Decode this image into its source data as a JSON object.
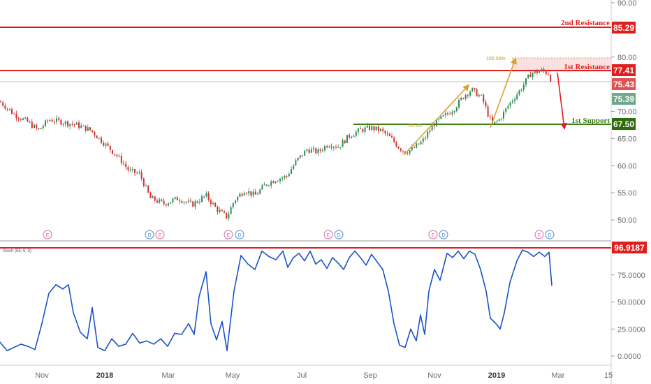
{
  "chart_data": [
    {
      "type": "candlestick",
      "panel": "price",
      "ylim": [
        45,
        92
      ],
      "yticks": [
        "90.00",
        "80.00",
        "70.00",
        "65.00",
        "60.00",
        "55.00",
        "50.00"
      ],
      "xlabels": [
        {
          "text": "Nov",
          "bold": false
        },
        {
          "text": "2018",
          "bold": true
        },
        {
          "text": "Mar",
          "bold": false
        },
        {
          "text": "May",
          "bold": false
        },
        {
          "text": "Jul",
          "bold": false
        },
        {
          "text": "Sep",
          "bold": false
        },
        {
          "text": "Nov",
          "bold": false
        },
        {
          "text": "2019",
          "bold": true
        },
        {
          "text": "Mar",
          "bold": false
        },
        {
          "text": "15",
          "bold": false
        }
      ],
      "price_path": [
        [
          0,
          71.8
        ],
        [
          20,
          69.5
        ],
        [
          40,
          68.0
        ],
        [
          55,
          66.5
        ],
        [
          70,
          68.5
        ],
        [
          90,
          68.0
        ],
        [
          110,
          67.5
        ],
        [
          130,
          66.5
        ],
        [
          150,
          64.0
        ],
        [
          170,
          61.5
        ],
        [
          185,
          59.0
        ],
        [
          200,
          58.5
        ],
        [
          215,
          54.0
        ],
        [
          235,
          53.0
        ],
        [
          255,
          54.0
        ],
        [
          275,
          52.8
        ],
        [
          295,
          54.5
        ],
        [
          310,
          52.0
        ],
        [
          325,
          50.5
        ],
        [
          335,
          53.5
        ],
        [
          350,
          55.5
        ],
        [
          365,
          54.5
        ],
        [
          380,
          56.5
        ],
        [
          395,
          57.5
        ],
        [
          410,
          58.0
        ],
        [
          425,
          61.0
        ],
        [
          440,
          63.0
        ],
        [
          455,
          62.5
        ],
        [
          470,
          64.0
        ],
        [
          485,
          63.5
        ],
        [
          500,
          65.5
        ],
        [
          515,
          66.5
        ],
        [
          530,
          67.0
        ],
        [
          545,
          66.5
        ],
        [
          560,
          65.0
        ],
        [
          570,
          63.5
        ],
        [
          580,
          62.5
        ],
        [
          590,
          63.0
        ],
        [
          605,
          64.5
        ],
        [
          620,
          67.5
        ],
        [
          635,
          69.0
        ],
        [
          650,
          70.5
        ],
        [
          665,
          73.0
        ],
        [
          675,
          74.0
        ],
        [
          690,
          72.5
        ],
        [
          700,
          69.0
        ],
        [
          705,
          67.5
        ],
        [
          715,
          68.5
        ],
        [
          730,
          71.5
        ],
        [
          745,
          74.0
        ],
        [
          760,
          77.0
        ],
        [
          775,
          77.5
        ],
        [
          785,
          77.0
        ],
        [
          790,
          75.5
        ]
      ],
      "levels": [
        {
          "name": "2nd Resistance",
          "value": 85.29,
          "label": "85.29",
          "color": "#e01e1e"
        },
        {
          "name": "1st Resistance",
          "value": 77.41,
          "label": "77.41",
          "color": "#e01e1e"
        },
        {
          "name": "1st Support",
          "value": 67.5,
          "label": "67.50",
          "color": "#3a7d12"
        }
      ],
      "price_tags": [
        {
          "label": "75.43",
          "value": 75.43,
          "color": "#e05252"
        },
        {
          "label": "75.39",
          "value": 75.39,
          "color": "#6aa98a"
        }
      ],
      "fib_labels": {
        "top": "100.00%",
        "bottom": "61.8%"
      },
      "event_markers": [
        {
          "kind": "E",
          "color": "#d26aa8"
        },
        {
          "kind": "D",
          "color": "#4a8fd6"
        },
        {
          "kind": "E",
          "color": "#d26aa8"
        },
        {
          "kind": "E",
          "color": "#d26aa8"
        },
        {
          "kind": "D",
          "color": "#4a8fd6"
        },
        {
          "kind": "E",
          "color": "#d26aa8"
        },
        {
          "kind": "D",
          "color": "#4a8fd6"
        },
        {
          "kind": "E",
          "color": "#d26aa8"
        },
        {
          "kind": "D",
          "color": "#4a8fd6"
        },
        {
          "kind": "E",
          "color": "#d26aa8"
        },
        {
          "kind": "D",
          "color": "#4a8fd6"
        }
      ]
    },
    {
      "type": "line",
      "panel": "oscillator",
      "title": "Stoch (55, 5, 3)",
      "ylim": [
        -3,
        103
      ],
      "yticks": [
        "75.0000",
        "50.0000",
        "25.0000",
        "0.0000"
      ],
      "level": {
        "value": 96.9187,
        "label": "96.9187",
        "color": "#e01e1e"
      },
      "series_color": "#1a53c8",
      "path": [
        [
          0,
          13
        ],
        [
          10,
          5
        ],
        [
          20,
          8
        ],
        [
          30,
          11
        ],
        [
          40,
          9
        ],
        [
          50,
          6
        ],
        [
          60,
          30
        ],
        [
          70,
          58
        ],
        [
          80,
          66
        ],
        [
          90,
          62
        ],
        [
          98,
          66
        ],
        [
          105,
          40
        ],
        [
          115,
          22
        ],
        [
          125,
          16
        ],
        [
          132,
          45
        ],
        [
          140,
          8
        ],
        [
          150,
          5
        ],
        [
          160,
          16
        ],
        [
          170,
          9
        ],
        [
          180,
          11
        ],
        [
          190,
          21
        ],
        [
          200,
          12
        ],
        [
          210,
          14
        ],
        [
          220,
          11
        ],
        [
          230,
          16
        ],
        [
          240,
          9
        ],
        [
          250,
          21
        ],
        [
          260,
          20
        ],
        [
          270,
          30
        ],
        [
          278,
          20
        ],
        [
          285,
          55
        ],
        [
          295,
          78
        ],
        [
          302,
          30
        ],
        [
          310,
          15
        ],
        [
          318,
          32
        ],
        [
          325,
          5
        ],
        [
          335,
          60
        ],
        [
          345,
          93
        ],
        [
          355,
          85
        ],
        [
          365,
          80
        ],
        [
          375,
          97
        ],
        [
          385,
          92
        ],
        [
          395,
          89
        ],
        [
          405,
          97
        ],
        [
          412,
          82
        ],
        [
          420,
          91
        ],
        [
          428,
          95
        ],
        [
          436,
          88
        ],
        [
          444,
          97
        ],
        [
          452,
          85
        ],
        [
          460,
          89
        ],
        [
          468,
          81
        ],
        [
          476,
          91
        ],
        [
          484,
          86
        ],
        [
          492,
          80
        ],
        [
          500,
          91
        ],
        [
          508,
          97
        ],
        [
          516,
          91
        ],
        [
          524,
          84
        ],
        [
          532,
          94
        ],
        [
          540,
          87
        ],
        [
          548,
          80
        ],
        [
          556,
          60
        ],
        [
          564,
          30
        ],
        [
          572,
          10
        ],
        [
          580,
          8
        ],
        [
          588,
          25
        ],
        [
          596,
          14
        ],
        [
          602,
          38
        ],
        [
          608,
          20
        ],
        [
          614,
          60
        ],
        [
          622,
          80
        ],
        [
          630,
          70
        ],
        [
          640,
          95
        ],
        [
          648,
          91
        ],
        [
          656,
          97
        ],
        [
          664,
          90
        ],
        [
          672,
          97
        ],
        [
          680,
          94
        ],
        [
          688,
          80
        ],
        [
          696,
          60
        ],
        [
          702,
          35
        ],
        [
          710,
          30
        ],
        [
          716,
          25
        ],
        [
          722,
          40
        ],
        [
          730,
          68
        ],
        [
          740,
          88
        ],
        [
          748,
          98
        ],
        [
          756,
          96
        ],
        [
          764,
          92
        ],
        [
          772,
          96
        ],
        [
          780,
          92
        ],
        [
          786,
          96
        ],
        [
          790,
          65
        ]
      ]
    }
  ],
  "labels": {
    "r2_title": "2nd Resistance",
    "r1_title": "1st Resistance",
    "s1_title": "1st Support",
    "r2_tag": "85.29",
    "r1_tag": "77.41",
    "s1_tag": "67.50",
    "last_tag_a": "75.43",
    "last_tag_b": "75.39",
    "osc_tag": "96.9187",
    "osc_title": "Stoch (55, 5, 3)",
    "fib_top": "100.00%",
    "fib_mid": "61.8%"
  }
}
